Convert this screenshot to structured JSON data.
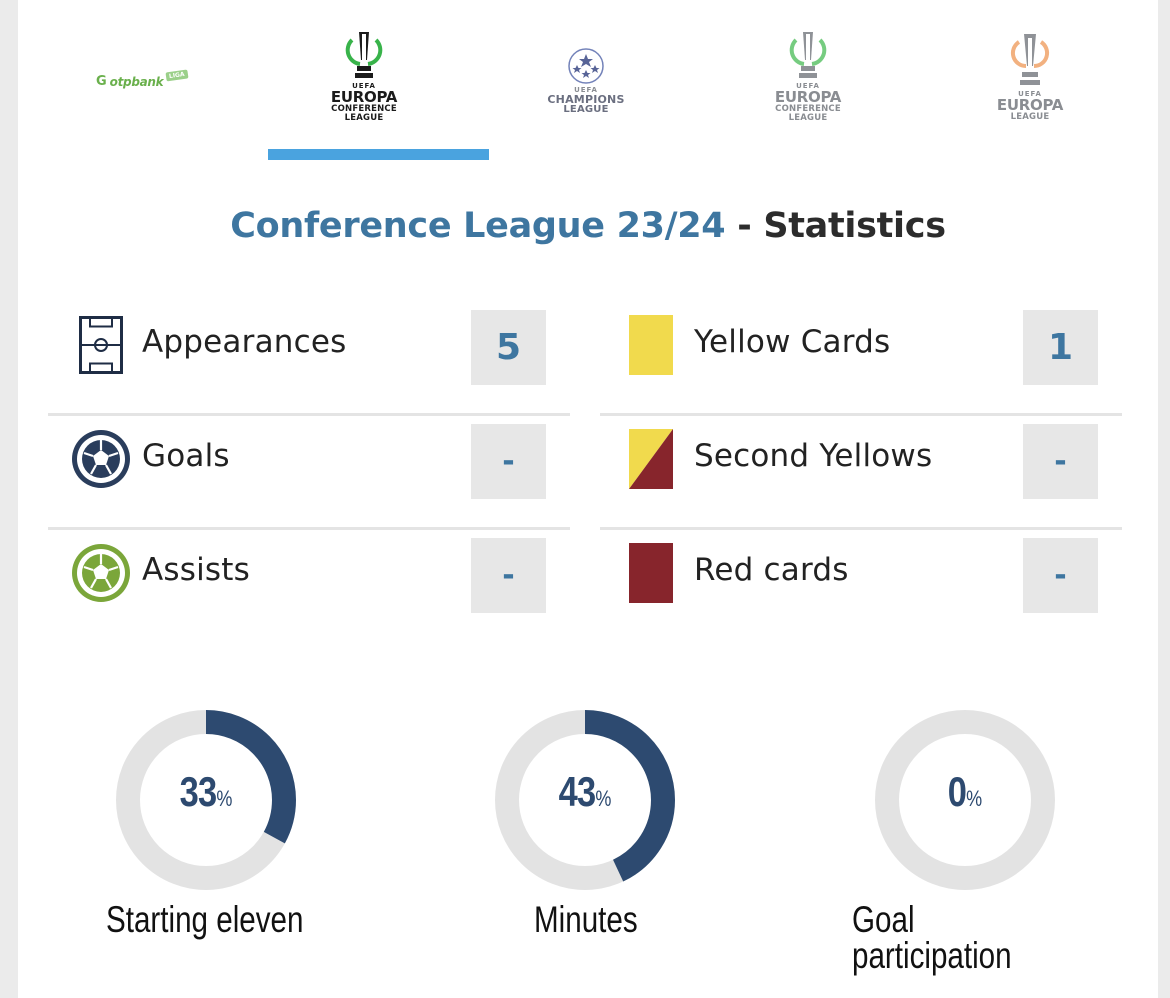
{
  "tabs": [
    {
      "id": "otp",
      "brand": "otpbank",
      "badge": "LIGA",
      "active": false
    },
    {
      "id": "uecl-active",
      "uefa": "UEFA",
      "big": "EUROPA",
      "small1": "CONFERENCE",
      "small2": "LEAGUE",
      "active": true
    },
    {
      "id": "ucl",
      "uefa": "UEFA",
      "big": "CHAMPIONS",
      "small2": "LEAGUE",
      "active": false
    },
    {
      "id": "uecl",
      "uefa": "UEFA",
      "big": "EUROPA",
      "small1": "CONFERENCE",
      "small2": "LEAGUE",
      "active": false
    },
    {
      "id": "uel",
      "uefa": "UEFA",
      "big": "EUROPA",
      "small2": "LEAGUE",
      "active": false
    }
  ],
  "title": {
    "competition": "Conference League 23/24",
    "separator": "-",
    "section": "Statistics"
  },
  "stats_left": [
    {
      "label": "Appearances",
      "value": "5",
      "icon": "pitch-icon"
    },
    {
      "label": "Goals",
      "value": "-",
      "icon": "ball-icon"
    },
    {
      "label": "Assists",
      "value": "-",
      "icon": "ball-icon"
    }
  ],
  "stats_right": [
    {
      "label": "Yellow Cards",
      "value": "1",
      "icon": "yellow-card-icon"
    },
    {
      "label": "Second Yellows",
      "value": "-",
      "icon": "second-yellow-icon"
    },
    {
      "label": "Red cards",
      "value": "-",
      "icon": "red-card-icon"
    }
  ],
  "donuts": [
    {
      "value": 33,
      "number": "33",
      "unit": "%",
      "label": "Starting eleven"
    },
    {
      "value": 43,
      "number": "43",
      "unit": "%",
      "label": "Minutes"
    },
    {
      "value": 0,
      "number": "0",
      "unit": "%",
      "label_line1": "Goal",
      "label_line2": "participation"
    }
  ],
  "colors": {
    "accent_blue": "#3e76a0",
    "tab_indicator": "#4aa3df",
    "donut_fill": "#2d4a70",
    "donut_track": "#e3e3e3",
    "yellow_card": "#f1da4d",
    "red_card": "#87252c",
    "goals_icon": "#2a3d5c",
    "assists_icon": "#7ba63a"
  }
}
